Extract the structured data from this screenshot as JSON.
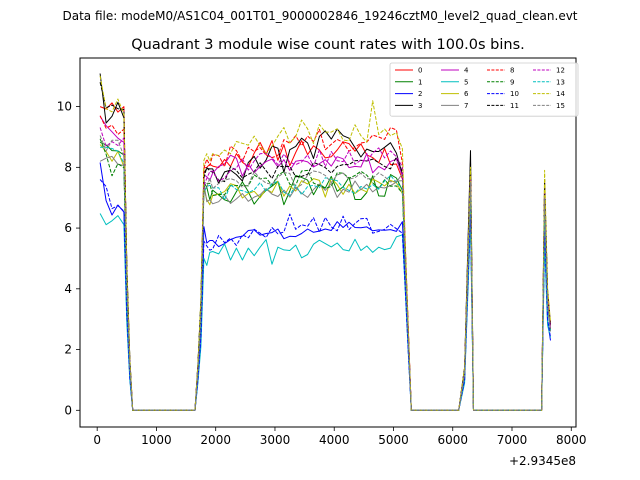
{
  "header": {
    "data_file_label": "Data file: modeM0/AS1C04_001T01_9000002846_19246cztM0_level2_quad_clean.evt"
  },
  "chart_data": {
    "type": "line",
    "title": "Quadrant 3 module wise count rates with 100.0s bins.",
    "xlabel": "",
    "ylabel": "",
    "x_offset_label": "+2.9345e8",
    "xlim": [
      -290,
      8080
    ],
    "ylim": [
      -0.55,
      11.6
    ],
    "xticks": [
      0,
      1000,
      2000,
      3000,
      4000,
      5000,
      6000,
      7000,
      8000
    ],
    "yticks": [
      0,
      2,
      4,
      6,
      8,
      10
    ],
    "x": [
      50,
      150,
      250,
      350,
      450,
      500,
      550,
      600,
      650,
      1650,
      1700,
      1750,
      1800,
      1850,
      1900,
      1950,
      2050,
      2150,
      2250,
      2350,
      2450,
      2550,
      2650,
      2750,
      2850,
      2950,
      3050,
      3150,
      3250,
      3350,
      3450,
      3550,
      3650,
      3750,
      3850,
      3950,
      4050,
      4150,
      4250,
      4350,
      4450,
      4550,
      4650,
      4750,
      4850,
      4950,
      5050,
      5150,
      5200,
      5250,
      5300,
      5350,
      6100,
      6200,
      6300,
      6350,
      6400,
      7500,
      7550,
      7600,
      7650
    ],
    "legend": {
      "position": "top-right",
      "columns": 4,
      "entries": [
        "0",
        "1",
        "2",
        "3",
        "4",
        "5",
        "6",
        "7",
        "8",
        "9",
        "10",
        "11",
        "12",
        "13",
        "14",
        "15"
      ]
    },
    "series": [
      {
        "name": "0",
        "color": "#ff0000",
        "dash": "solid",
        "values": [
          10.0,
          9.92,
          10.12,
          9.82,
          10.0,
          4.6,
          1.6,
          0.0,
          0.0,
          0.0,
          1.4,
          3.4,
          7.97,
          8.0,
          8.1,
          8.04,
          7.99,
          8.26,
          8.03,
          8.45,
          8.17,
          8.02,
          8.47,
          8.82,
          8.42,
          8.88,
          8.23,
          8.75,
          8.05,
          8.49,
          8.88,
          8.42,
          8.71,
          8.57,
          8.31,
          8.35,
          8.57,
          8.84,
          8.78,
          8.53,
          8.77,
          8.41,
          8.32,
          8.15,
          8.62,
          8.09,
          8.11,
          7.62,
          5.2,
          2.6,
          0.0,
          0.0,
          0.0,
          1.3,
          7.8,
          0.0,
          0.0,
          0.0,
          7.2,
          3.8,
          2.8
        ]
      },
      {
        "name": "1",
        "color": "#008000",
        "dash": "solid",
        "values": [
          8.82,
          8.74,
          8.55,
          8.54,
          8.41,
          4.1,
          1.4,
          0.0,
          0.0,
          0.0,
          1.3,
          3.0,
          7.51,
          7.34,
          6.93,
          7.25,
          7.09,
          6.93,
          6.86,
          7.2,
          7.52,
          7.2,
          6.79,
          7.04,
          7.24,
          7.38,
          7.54,
          6.77,
          7.22,
          7.73,
          7.67,
          7.58,
          7.1,
          7.44,
          7.32,
          7.7,
          7.21,
          7.36,
          7.67,
          6.94,
          6.94,
          7.17,
          7.72,
          7.06,
          7.05,
          7.76,
          7.65,
          7.24,
          4.9,
          2.4,
          0.0,
          0.0,
          0.0,
          1.2,
          7.2,
          0.0,
          0.0,
          0.0,
          6.6,
          3.5,
          2.6
        ]
      },
      {
        "name": "2",
        "color": "#0000ff",
        "dash": "solid",
        "values": [
          8.16,
          6.9,
          6.43,
          6.76,
          6.53,
          3.1,
          1.1,
          0.0,
          0.0,
          0.0,
          1.0,
          2.3,
          6.05,
          5.51,
          5.59,
          5.59,
          5.39,
          5.49,
          5.62,
          5.7,
          5.73,
          5.92,
          5.94,
          5.77,
          5.82,
          5.85,
          5.97,
          5.65,
          5.73,
          5.72,
          5.82,
          5.97,
          5.86,
          5.9,
          5.97,
          5.92,
          6.21,
          6.02,
          6.19,
          6.02,
          6.01,
          6.04,
          5.91,
          5.94,
          5.93,
          5.95,
          5.89,
          6.21,
          4.2,
          2.0,
          0.0,
          0.0,
          0.0,
          1.0,
          6.5,
          0.0,
          0.0,
          0.0,
          5.8,
          2.9,
          2.3
        ]
      },
      {
        "name": "3",
        "color": "#000000",
        "dash": "solid",
        "values": [
          11.09,
          9.46,
          9.68,
          10.14,
          9.63,
          4.8,
          1.7,
          0.0,
          0.0,
          0.0,
          1.5,
          3.6,
          7.81,
          7.96,
          7.95,
          7.95,
          7.47,
          7.85,
          7.91,
          7.76,
          7.55,
          8.16,
          8.36,
          7.97,
          8.24,
          8.7,
          8.63,
          7.84,
          8.58,
          8.69,
          8.96,
          8.8,
          8.29,
          9.02,
          9.2,
          8.93,
          9.26,
          9.04,
          8.96,
          8.65,
          8.34,
          8.6,
          8.52,
          8.52,
          8.66,
          8.81,
          8.47,
          7.76,
          5.3,
          2.6,
          0.0,
          0.0,
          0.0,
          1.4,
          8.55,
          0.0,
          0.0,
          0.0,
          7.4,
          3.9,
          2.8
        ]
      },
      {
        "name": "4",
        "color": "#bf00bf",
        "dash": "solid",
        "values": [
          9.68,
          9.37,
          9.17,
          8.96,
          8.82,
          4.3,
          1.5,
          0.0,
          0.0,
          0.0,
          1.4,
          3.2,
          7.75,
          7.69,
          7.57,
          7.81,
          8.03,
          8.11,
          8.4,
          8.3,
          7.71,
          8.1,
          7.82,
          8.03,
          8.19,
          8.27,
          8.01,
          8.25,
          7.9,
          8.2,
          8.23,
          8.18,
          8.01,
          8.12,
          8.25,
          8.04,
          8.35,
          8.28,
          7.99,
          8.03,
          8.01,
          8.46,
          7.82,
          8.03,
          7.92,
          8.19,
          8.27,
          7.71,
          5.1,
          2.5,
          0.0,
          0.0,
          0.0,
          1.3,
          7.5,
          0.0,
          0.0,
          0.0,
          6.9,
          3.6,
          2.7
        ]
      },
      {
        "name": "5",
        "color": "#00bfbf",
        "dash": "solid",
        "values": [
          6.48,
          6.11,
          6.24,
          6.41,
          6.11,
          2.9,
          1.0,
          0.0,
          0.0,
          0.0,
          0.9,
          2.1,
          5.0,
          4.77,
          5.2,
          5.23,
          5.15,
          5.48,
          4.95,
          5.34,
          4.95,
          5.34,
          5.09,
          5.37,
          5.62,
          4.81,
          5.37,
          5.28,
          5.26,
          5.44,
          5.02,
          5.13,
          5.47,
          5.6,
          5.49,
          5.38,
          5.51,
          5.29,
          5.25,
          5.63,
          5.26,
          5.41,
          5.2,
          5.37,
          5.29,
          5.34,
          5.71,
          5.78,
          3.9,
          1.9,
          0.0,
          0.0,
          0.0,
          0.9,
          6.2,
          0.0,
          0.0,
          0.0,
          5.5,
          2.8,
          2.4
        ]
      },
      {
        "name": "6",
        "color": "#bfbf00",
        "dash": "solid",
        "values": [
          8.75,
          8.52,
          8.2,
          8.52,
          8.03,
          4.0,
          1.4,
          0.0,
          0.0,
          0.0,
          1.3,
          3.1,
          7.29,
          6.94,
          6.77,
          7.08,
          7.12,
          7.2,
          7.46,
          7.4,
          6.99,
          7.14,
          7.21,
          7.0,
          7.29,
          7.17,
          7.54,
          7.05,
          7.39,
          7.22,
          7.56,
          7.45,
          7.63,
          7.57,
          7.02,
          7.64,
          7.43,
          7.11,
          7.44,
          7.14,
          7.28,
          7.19,
          7.62,
          7.51,
          7.39,
          7.57,
          7.49,
          7.14,
          4.8,
          2.3,
          0.0,
          0.0,
          0.0,
          1.2,
          7.3,
          0.0,
          0.0,
          0.0,
          6.8,
          3.4,
          2.6
        ]
      },
      {
        "name": "7",
        "color": "#808080",
        "dash": "solid",
        "values": [
          8.2,
          8.3,
          8.36,
          8.1,
          8.06,
          3.9,
          1.4,
          0.0,
          0.0,
          0.0,
          1.2,
          3.0,
          7.49,
          6.87,
          6.93,
          6.8,
          6.87,
          7.08,
          6.81,
          6.96,
          7.14,
          6.88,
          7.02,
          7.1,
          7.3,
          7.12,
          7.04,
          7.25,
          7.02,
          7.33,
          7.15,
          7.01,
          7.27,
          7.45,
          7.24,
          7.47,
          7.01,
          7.28,
          7.18,
          7.55,
          7.26,
          7.44,
          7.19,
          7.35,
          7.32,
          7.4,
          7.51,
          7.79,
          5.0,
          2.4,
          0.0,
          0.0,
          0.0,
          1.2,
          7.1,
          0.0,
          0.0,
          0.0,
          6.7,
          3.4,
          2.6
        ]
      },
      {
        "name": "8",
        "color": "#ff0000",
        "dash": "dashed",
        "values": [
          9.7,
          9.29,
          9.39,
          9.08,
          9.26,
          4.4,
          1.5,
          0.0,
          0.0,
          0.0,
          1.4,
          3.3,
          7.97,
          8.27,
          8.06,
          8.41,
          8.39,
          8.02,
          8.7,
          8.55,
          8.2,
          8.66,
          8.52,
          8.65,
          8.4,
          8.32,
          8.39,
          8.91,
          8.79,
          9.04,
          8.71,
          9.03,
          8.85,
          9.25,
          8.58,
          8.76,
          8.92,
          8.82,
          8.53,
          8.66,
          8.8,
          8.83,
          9.06,
          9.0,
          8.92,
          9.31,
          9.23,
          8.14,
          5.4,
          2.7,
          0.0,
          0.0,
          0.0,
          1.3,
          7.9,
          0.0,
          0.0,
          0.0,
          7.5,
          3.8,
          2.8
        ]
      },
      {
        "name": "9",
        "color": "#008000",
        "dash": "dashed",
        "values": [
          8.94,
          8.43,
          7.72,
          8.12,
          7.99,
          4.0,
          1.4,
          0.0,
          0.0,
          0.0,
          1.3,
          3.1,
          7.43,
          7.47,
          7.47,
          7.07,
          7.11,
          7.1,
          7.4,
          7.4,
          7.41,
          7.39,
          7.75,
          7.62,
          7.65,
          7.41,
          7.74,
          7.86,
          7.44,
          7.41,
          7.88,
          7.9,
          7.48,
          7.4,
          7.31,
          7.37,
          7.82,
          7.81,
          7.64,
          7.73,
          7.87,
          7.74,
          7.49,
          7.3,
          7.59,
          7.38,
          7.39,
          7.15,
          4.8,
          2.3,
          0.0,
          0.0,
          0.0,
          1.2,
          7.3,
          0.0,
          0.0,
          0.0,
          6.9,
          3.5,
          2.6
        ]
      },
      {
        "name": "10",
        "color": "#0000ff",
        "dash": "dashed",
        "values": [
          7.6,
          7.37,
          6.64,
          6.74,
          6.56,
          3.2,
          1.1,
          0.0,
          0.0,
          0.0,
          1.0,
          2.4,
          5.57,
          5.41,
          5.27,
          5.31,
          5.76,
          5.52,
          5.67,
          5.43,
          5.78,
          5.68,
          5.96,
          5.83,
          5.69,
          6.02,
          5.81,
          5.87,
          6.46,
          5.96,
          6.11,
          6.06,
          6.34,
          5.87,
          6.35,
          6.04,
          5.91,
          6.39,
          5.95,
          6.15,
          6.31,
          6.32,
          5.83,
          5.89,
          5.96,
          6.12,
          5.98,
          5.83,
          4.0,
          1.9,
          0.0,
          0.0,
          0.0,
          1.0,
          6.6,
          0.0,
          0.0,
          0.0,
          6.0,
          3.0,
          2.4
        ]
      },
      {
        "name": "11",
        "color": "#000000",
        "dash": "dashed",
        "values": [
          10.8,
          9.96,
          10.05,
          9.93,
          9.9,
          4.7,
          1.7,
          0.0,
          0.0,
          0.0,
          1.5,
          3.6,
          7.66,
          7.99,
          7.88,
          7.84,
          7.58,
          7.53,
          8.02,
          7.9,
          7.65,
          7.77,
          7.86,
          8.15,
          7.89,
          7.63,
          8.04,
          8.02,
          8.03,
          7.69,
          7.7,
          7.77,
          8.16,
          8.09,
          7.99,
          7.81,
          8.03,
          8.09,
          8.09,
          8.22,
          8.23,
          8.21,
          8.27,
          8.16,
          8.03,
          7.95,
          8.34,
          7.85,
          5.2,
          2.5,
          0.0,
          0.0,
          0.0,
          1.4,
          8.2,
          0.0,
          0.0,
          0.0,
          7.6,
          3.9,
          2.8
        ]
      },
      {
        "name": "12",
        "color": "#bf00bf",
        "dash": "dashed",
        "values": [
          9.31,
          8.69,
          8.85,
          8.72,
          8.97,
          4.3,
          1.5,
          0.0,
          0.0,
          0.0,
          1.3,
          3.2,
          7.39,
          7.64,
          7.86,
          7.88,
          7.55,
          7.65,
          7.9,
          7.98,
          8.29,
          7.91,
          8.21,
          8.45,
          8.47,
          8.31,
          8.09,
          8.44,
          8.17,
          8.09,
          8.18,
          8.41,
          8.03,
          8.58,
          8.02,
          8.52,
          8.22,
          8.19,
          8.54,
          8.1,
          8.24,
          8.2,
          8.47,
          8.64,
          8.31,
          8.54,
          8.35,
          8.02,
          5.2,
          2.5,
          0.0,
          0.0,
          0.0,
          1.3,
          7.7,
          0.0,
          0.0,
          0.0,
          7.2,
          3.7,
          2.7
        ]
      },
      {
        "name": "13",
        "color": "#00bfbf",
        "dash": "dashed",
        "values": [
          8.66,
          8.66,
          8.62,
          8.53,
          8.13,
          4.0,
          1.4,
          0.0,
          0.0,
          0.0,
          1.3,
          3.1,
          7.16,
          7.37,
          7.41,
          7.32,
          7.33,
          6.93,
          7.43,
          7.27,
          7.23,
          7.16,
          7.26,
          7.5,
          7.2,
          7.47,
          7.54,
          7.18,
          7.08,
          7.41,
          7.1,
          7.37,
          7.41,
          7.33,
          7.66,
          7.61,
          7.56,
          7.34,
          7.24,
          7.14,
          7.37,
          7.29,
          7.43,
          7.28,
          7.55,
          7.73,
          7.51,
          7.3,
          4.8,
          2.3,
          0.0,
          0.0,
          0.0,
          1.2,
          7.2,
          0.0,
          0.0,
          0.0,
          6.7,
          3.4,
          2.6
        ]
      },
      {
        "name": "14",
        "color": "#bfbf00",
        "dash": "dashed",
        "values": [
          11.01,
          9.93,
          9.83,
          10.25,
          9.75,
          4.8,
          1.7,
          0.0,
          0.0,
          0.0,
          1.5,
          3.7,
          8.23,
          8.45,
          8.21,
          8.45,
          8.38,
          8.57,
          8.45,
          8.85,
          8.79,
          8.73,
          9.03,
          8.71,
          8.47,
          8.69,
          9.03,
          9.31,
          8.8,
          9.01,
          9.56,
          9.27,
          8.78,
          9.41,
          9.16,
          9.16,
          9.27,
          8.9,
          8.87,
          9.4,
          9.04,
          8.83,
          10.19,
          9.08,
          9.26,
          9.04,
          9.14,
          8.61,
          5.5,
          2.7,
          0.0,
          0.0,
          0.0,
          1.4,
          8.0,
          0.0,
          0.0,
          0.0,
          7.9,
          4.0,
          2.9
        ]
      },
      {
        "name": "15",
        "color": "#808080",
        "dash": "dashed",
        "values": [
          9.05,
          8.54,
          8.89,
          8.89,
          8.37,
          4.2,
          1.5,
          0.0,
          0.0,
          0.0,
          1.3,
          3.2,
          7.28,
          7.34,
          7.66,
          7.3,
          7.47,
          7.58,
          7.63,
          7.56,
          7.34,
          7.42,
          7.86,
          7.63,
          7.48,
          7.44,
          7.68,
          7.83,
          7.8,
          7.31,
          7.43,
          7.74,
          7.88,
          7.84,
          7.73,
          7.5,
          7.75,
          7.81,
          7.61,
          7.66,
          7.81,
          7.62,
          7.64,
          7.82,
          7.69,
          7.52,
          7.55,
          7.56,
          4.9,
          2.4,
          0.0,
          0.0,
          0.0,
          1.2,
          7.5,
          0.0,
          0.0,
          0.0,
          7.0,
          3.5,
          2.6
        ]
      }
    ]
  }
}
